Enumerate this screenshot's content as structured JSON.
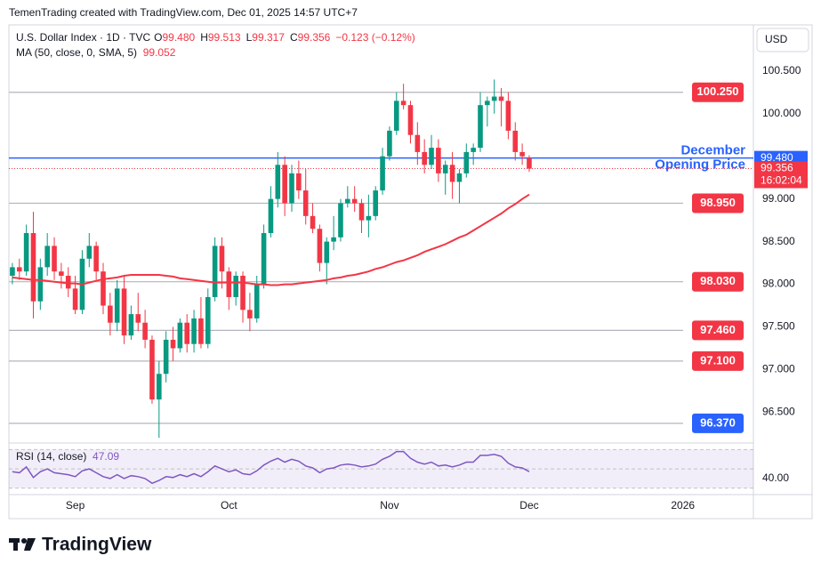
{
  "header": {
    "credit": "TemenTrading created with TradingView.com, Dec 01, 2025 14:57 UTC+7",
    "currency": "USD",
    "logo": "TradingView"
  },
  "chart_data": {
    "type": "candlestick",
    "title": "U.S. Dollar Index · 1D · TVC",
    "legend_values": [
      {
        "label": "O",
        "value": "99.480"
      },
      {
        "label": "H",
        "value": "99.513"
      },
      {
        "label": "L",
        "value": "99.317"
      },
      {
        "label": "C",
        "value": "99.356"
      }
    ],
    "change": "−0.123 (−0.12%)",
    "up_color": "#089981",
    "down_color": "#f23645",
    "open": [
      98.1,
      98.2,
      98.15,
      98.6,
      97.8,
      98.2,
      98.45,
      98.15,
      98.1,
      97.95,
      97.7,
      98.3,
      98.45,
      98.15,
      97.75,
      97.55,
      97.95,
      97.4,
      97.65,
      97.55,
      97.35,
      96.65,
      96.95,
      97.35,
      97.25,
      97.55,
      97.3,
      97.6,
      97.3,
      97.85,
      98.45,
      98.15,
      97.85,
      98.1,
      97.7,
      97.6,
      98.0,
      98.6,
      99.0,
      99.4,
      98.95,
      99.3,
      99.1,
      98.8,
      98.65,
      98.25,
      98.5,
      98.55,
      98.95,
      99.0,
      98.95,
      98.75,
      98.8,
      99.1,
      99.5,
      99.8,
      100.15,
      100.1,
      99.75,
      99.55,
      99.4,
      99.6,
      99.3,
      99.4,
      99.2,
      99.3,
      99.55,
      99.6,
      100.1,
      100.15,
      100.2,
      100.15,
      99.8,
      99.55,
      99.48
    ],
    "high": [
      98.25,
      98.3,
      98.7,
      98.85,
      98.3,
      98.6,
      98.55,
      98.25,
      98.2,
      98.1,
      98.4,
      98.6,
      98.5,
      98.25,
      97.9,
      98.05,
      98.1,
      97.75,
      97.9,
      97.7,
      97.4,
      97.1,
      97.45,
      97.5,
      97.6,
      97.65,
      97.7,
      97.85,
      97.95,
      98.55,
      98.55,
      98.2,
      98.15,
      98.15,
      97.9,
      98.1,
      98.7,
      99.15,
      99.55,
      99.5,
      99.4,
      99.45,
      99.35,
      98.95,
      98.7,
      98.55,
      98.8,
      99.0,
      99.15,
      99.15,
      99.0,
      99.05,
      99.15,
      99.6,
      99.85,
      100.25,
      100.35,
      100.15,
      99.9,
      99.7,
      99.75,
      99.7,
      99.45,
      99.55,
      99.35,
      99.65,
      99.65,
      100.25,
      100.2,
      100.4,
      100.3,
      100.25,
      99.9,
      99.65,
      99.513
    ],
    "low": [
      98.0,
      98.05,
      98.1,
      97.6,
      97.7,
      98.1,
      98.05,
      97.95,
      97.85,
      97.65,
      97.65,
      98.2,
      98.05,
      97.65,
      97.4,
      97.45,
      97.3,
      97.35,
      97.45,
      97.25,
      96.6,
      96.2,
      96.85,
      97.1,
      97.2,
      97.2,
      97.2,
      97.25,
      97.25,
      97.8,
      97.95,
      97.7,
      97.75,
      97.55,
      97.45,
      97.55,
      97.95,
      98.55,
      98.9,
      98.8,
      98.85,
      99.0,
      98.7,
      98.6,
      98.15,
      98.0,
      98.4,
      98.5,
      98.9,
      98.85,
      98.6,
      98.55,
      98.75,
      99.05,
      99.45,
      99.75,
      100.05,
      99.65,
      99.4,
      99.3,
      99.35,
      99.2,
      99.05,
      99.0,
      98.95,
      99.25,
      99.4,
      99.55,
      99.85,
      100.0,
      99.85,
      99.7,
      99.45,
      99.4,
      99.317
    ],
    "close": [
      98.2,
      98.15,
      98.6,
      97.8,
      98.2,
      98.45,
      98.15,
      98.1,
      97.95,
      97.7,
      98.3,
      98.45,
      98.15,
      97.75,
      97.55,
      97.95,
      97.4,
      97.65,
      97.55,
      97.35,
      96.65,
      96.95,
      97.35,
      97.25,
      97.55,
      97.3,
      97.6,
      97.3,
      97.85,
      98.45,
      98.15,
      97.85,
      98.1,
      97.7,
      97.6,
      98.0,
      98.6,
      99.0,
      99.4,
      98.95,
      99.3,
      99.1,
      98.8,
      98.65,
      98.25,
      98.5,
      98.55,
      98.95,
      99.0,
      98.95,
      98.75,
      98.8,
      99.1,
      99.5,
      99.8,
      100.15,
      100.1,
      99.75,
      99.55,
      99.4,
      99.6,
      99.3,
      99.4,
      99.2,
      99.3,
      99.55,
      99.6,
      100.1,
      100.15,
      100.2,
      100.15,
      99.8,
      99.55,
      99.5,
      99.356
    ],
    "xlim": [
      -0.5,
      106.1
    ],
    "xticks": [
      {
        "value": 9,
        "label": "Sep"
      },
      {
        "value": 31,
        "label": "Oct"
      },
      {
        "value": 54,
        "label": "Nov"
      },
      {
        "value": 74,
        "label": "Dec"
      },
      {
        "value": 96,
        "label": "2026"
      }
    ],
    "ylim": [
      96.15,
      101.04
    ],
    "yticks": [
      {
        "value": 100.5,
        "label": "100.500"
      },
      {
        "value": 100,
        "label": "100.000"
      },
      {
        "value": 99,
        "label": "99.000"
      },
      {
        "value": 98.5,
        "label": "98.500"
      },
      {
        "value": 98,
        "label": "98.000"
      },
      {
        "value": 97.5,
        "label": "97.500"
      },
      {
        "value": 97,
        "label": "97.000"
      },
      {
        "value": 96.5,
        "label": "96.500"
      }
    ],
    "ma": {
      "name": "MA (50, close, 0, SMA, 5)",
      "color": "#f23645",
      "values": [
        98.08,
        98.07,
        98.06,
        98.05,
        98.05,
        98.04,
        98.03,
        98.02,
        98.01,
        98.01,
        98.0,
        98.02,
        98.04,
        98.06,
        98.07,
        98.08,
        98.1,
        98.11,
        98.11,
        98.11,
        98.11,
        98.11,
        98.1,
        98.09,
        98.07,
        98.06,
        98.05,
        98.04,
        98.03,
        98.02,
        98.02,
        98.02,
        98.02,
        98.02,
        98.01,
        98.0,
        98.0,
        97.99,
        97.99,
        98.0,
        98.0,
        98.01,
        98.02,
        98.03,
        98.04,
        98.05,
        98.07,
        98.08,
        98.1,
        98.11,
        98.13,
        98.15,
        98.18,
        98.2,
        98.23,
        98.26,
        98.28,
        98.31,
        98.34,
        98.38,
        98.41,
        98.44,
        98.47,
        98.51,
        98.55,
        98.58,
        98.63,
        98.68,
        98.73,
        98.78,
        98.83,
        98.89,
        98.94,
        99.0,
        99.052
      ]
    },
    "levels": [
      {
        "value": 100.25,
        "label": "100.250",
        "color": "#f23645"
      },
      {
        "value": 98.95,
        "label": "98.950",
        "color": "#f23645"
      },
      {
        "value": 98.03,
        "label": "98.030",
        "color": "#f23645"
      },
      {
        "value": 97.46,
        "label": "97.460",
        "color": "#f23645"
      },
      {
        "value": 97.1,
        "label": "97.100",
        "color": "#f23645"
      },
      {
        "value": 96.37,
        "label": "96.370",
        "color": "#2962ff"
      }
    ],
    "december_line": {
      "value": 99.48,
      "label": "99.480",
      "text": [
        "December",
        "Opening Price"
      ],
      "color": "#2962ff"
    },
    "last_price": {
      "value": 99.356,
      "countdown": "16:02:04",
      "color": "#f23645"
    },
    "rsi": {
      "name": "RSI (14, close)",
      "color": "#7e57c2",
      "ylim": [
        27,
        75
      ],
      "yticks": [
        {
          "value": 40,
          "label": "40.00"
        }
      ],
      "bands": [
        70,
        50,
        30
      ],
      "values": [
        47,
        46,
        52,
        41,
        47,
        50,
        46,
        45,
        44,
        42,
        48,
        50,
        46,
        42,
        40,
        44,
        40,
        43,
        42,
        40,
        35,
        38,
        42,
        41,
        44,
        42,
        45,
        42,
        47,
        53,
        50,
        47,
        49,
        45,
        44,
        48,
        54,
        58,
        61,
        57,
        60,
        58,
        53,
        51,
        46,
        50,
        51,
        54,
        55,
        54,
        52,
        53,
        55,
        60,
        63,
        68,
        68,
        61,
        57,
        55,
        57,
        53,
        54,
        52,
        54,
        57,
        57,
        64,
        64,
        65,
        63,
        56,
        52,
        51,
        47.09
      ]
    }
  }
}
